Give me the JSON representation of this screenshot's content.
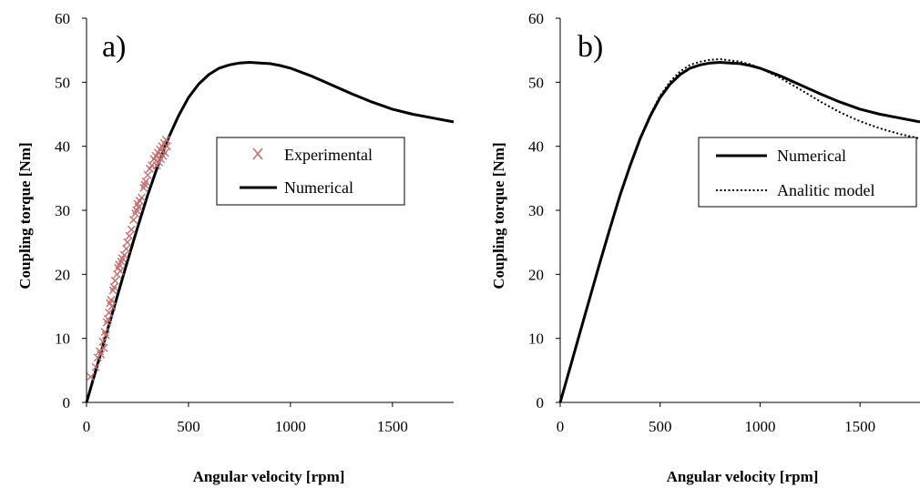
{
  "chart_data": [
    {
      "type": "scatter",
      "panel_label": "a)",
      "xlabel": "Angular velocity [rpm]",
      "ylabel": "Coupling torque [Nm]",
      "xlim": [
        0,
        1800
      ],
      "ylim": [
        0,
        60
      ],
      "xticks": [
        0,
        500,
        1000,
        1500
      ],
      "yticks": [
        0,
        10,
        20,
        30,
        40,
        50,
        60
      ],
      "grid": false,
      "legend_position": "middle-right",
      "series": [
        {
          "name": "Experimental",
          "style": "cross-markers",
          "color": "#c07070",
          "points": [
            [
              20,
              4.0
            ],
            [
              45,
              5.5
            ],
            [
              55,
              7.0
            ],
            [
              65,
              8.0
            ],
            [
              70,
              7.5
            ],
            [
              80,
              9.5
            ],
            [
              85,
              8.5
            ],
            [
              90,
              11.0
            ],
            [
              95,
              10.5
            ],
            [
              100,
              12.5
            ],
            [
              105,
              13.0
            ],
            [
              110,
              14.0
            ],
            [
              115,
              15.5
            ],
            [
              120,
              16.0
            ],
            [
              125,
              15.0
            ],
            [
              130,
              17.5
            ],
            [
              135,
              18.0
            ],
            [
              140,
              19.0
            ],
            [
              150,
              20.0
            ],
            [
              155,
              21.0
            ],
            [
              160,
              21.5
            ],
            [
              165,
              20.5
            ],
            [
              170,
              22.0
            ],
            [
              175,
              22.5
            ],
            [
              185,
              23.0
            ],
            [
              195,
              24.0
            ],
            [
              200,
              25.0
            ],
            [
              210,
              26.0
            ],
            [
              220,
              27.0
            ],
            [
              230,
              28.5
            ],
            [
              240,
              29.5
            ],
            [
              245,
              30.0
            ],
            [
              250,
              31.0
            ],
            [
              255,
              30.5
            ],
            [
              260,
              31.5
            ],
            [
              270,
              32.0
            ],
            [
              280,
              33.5
            ],
            [
              285,
              34.0
            ],
            [
              290,
              34.5
            ],
            [
              300,
              35.5
            ],
            [
              310,
              36.5
            ],
            [
              320,
              37.0
            ],
            [
              330,
              38.0
            ],
            [
              340,
              38.5
            ],
            [
              350,
              39.0
            ],
            [
              360,
              39.5
            ],
            [
              370,
              40.0
            ],
            [
              380,
              40.5
            ],
            [
              390,
              41.0
            ],
            [
              395,
              40.0
            ],
            [
              385,
              39.0
            ],
            [
              375,
              38.5
            ],
            [
              365,
              38.0
            ],
            [
              355,
              37.5
            ],
            [
              345,
              37.0
            ]
          ]
        },
        {
          "name": "Numerical",
          "style": "solid",
          "color": "#000000",
          "points": [
            [
              0,
              0
            ],
            [
              50,
              5.5
            ],
            [
              100,
              11.0
            ],
            [
              150,
              16.5
            ],
            [
              200,
              22.0
            ],
            [
              250,
              27.3
            ],
            [
              300,
              32.4
            ],
            [
              350,
              37.0
            ],
            [
              400,
              41.2
            ],
            [
              450,
              44.7
            ],
            [
              500,
              47.6
            ],
            [
              550,
              49.7
            ],
            [
              600,
              51.2
            ],
            [
              650,
              52.2
            ],
            [
              700,
              52.7
            ],
            [
              750,
              53.0
            ],
            [
              800,
              53.1
            ],
            [
              850,
              53.0
            ],
            [
              900,
              52.9
            ],
            [
              950,
              52.6
            ],
            [
              1000,
              52.2
            ],
            [
              1100,
              51.0
            ],
            [
              1200,
              49.6
            ],
            [
              1300,
              48.2
            ],
            [
              1400,
              46.9
            ],
            [
              1500,
              45.8
            ],
            [
              1600,
              45.0
            ],
            [
              1700,
              44.4
            ],
            [
              1800,
              43.8
            ]
          ]
        }
      ]
    },
    {
      "type": "line",
      "panel_label": "b)",
      "xlabel": "Angular velocity [rpm]",
      "ylabel": "Coupling torque [Nm]",
      "xlim": [
        0,
        1800
      ],
      "ylim": [
        0,
        60
      ],
      "xticks": [
        0,
        500,
        1000,
        1500
      ],
      "yticks": [
        0,
        10,
        20,
        30,
        40,
        50,
        60
      ],
      "grid": false,
      "legend_position": "middle-right",
      "series": [
        {
          "name": "Numerical",
          "style": "solid",
          "color": "#000000",
          "points": [
            [
              0,
              0
            ],
            [
              50,
              5.5
            ],
            [
              100,
              11.0
            ],
            [
              150,
              16.5
            ],
            [
              200,
              22.0
            ],
            [
              250,
              27.3
            ],
            [
              300,
              32.4
            ],
            [
              350,
              37.0
            ],
            [
              400,
              41.2
            ],
            [
              450,
              44.7
            ],
            [
              500,
              47.6
            ],
            [
              550,
              49.7
            ],
            [
              600,
              51.2
            ],
            [
              650,
              52.2
            ],
            [
              700,
              52.7
            ],
            [
              750,
              53.0
            ],
            [
              800,
              53.1
            ],
            [
              850,
              53.0
            ],
            [
              900,
              52.9
            ],
            [
              950,
              52.6
            ],
            [
              1000,
              52.2
            ],
            [
              1100,
              51.0
            ],
            [
              1200,
              49.6
            ],
            [
              1300,
              48.2
            ],
            [
              1400,
              46.9
            ],
            [
              1500,
              45.8
            ],
            [
              1600,
              45.0
            ],
            [
              1700,
              44.4
            ],
            [
              1800,
              43.8
            ]
          ]
        },
        {
          "name": "Analitic model",
          "style": "dotted",
          "color": "#000000",
          "points": [
            [
              0,
              0
            ],
            [
              50,
              5.5
            ],
            [
              100,
              11.0
            ],
            [
              150,
              16.5
            ],
            [
              200,
              22.0
            ],
            [
              250,
              27.3
            ],
            [
              300,
              32.4
            ],
            [
              350,
              37.0
            ],
            [
              400,
              41.3
            ],
            [
              450,
              44.9
            ],
            [
              500,
              47.9
            ],
            [
              550,
              50.1
            ],
            [
              600,
              51.7
            ],
            [
              650,
              52.7
            ],
            [
              700,
              53.2
            ],
            [
              750,
              53.5
            ],
            [
              800,
              53.6
            ],
            [
              850,
              53.4
            ],
            [
              900,
              53.2
            ],
            [
              950,
              52.8
            ],
            [
              1000,
              52.2
            ],
            [
              1100,
              50.7
            ],
            [
              1200,
              48.9
            ],
            [
              1300,
              47.0
            ],
            [
              1400,
              45.3
            ],
            [
              1500,
              43.9
            ],
            [
              1600,
              42.8
            ],
            [
              1700,
              41.9
            ],
            [
              1800,
              41.2
            ]
          ]
        }
      ]
    }
  ]
}
